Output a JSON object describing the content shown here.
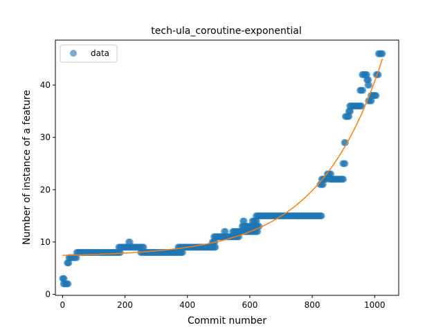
{
  "chart_data": {
    "type": "scatter",
    "title": "tech-ula_coroutine-exponential",
    "xlabel": "Commit number",
    "ylabel": "Number of instance of a feature",
    "xlim": [
      -23,
      1077
    ],
    "ylim": [
      -0.2,
      48.6
    ],
    "xticks": [
      0,
      200,
      400,
      600,
      800,
      1000
    ],
    "yticks": [
      0,
      10,
      20,
      30,
      40
    ],
    "legend": {
      "position": "top-left",
      "entries": [
        "data"
      ]
    },
    "grid": false,
    "colors": {
      "data": "#1f77b4",
      "fit": "#ff7f0e"
    },
    "series": [
      {
        "name": "data",
        "kind": "points",
        "segments": [
          {
            "x": [
              0,
              5
            ],
            "y": 3
          },
          {
            "x": [
              3,
              18
            ],
            "y": 2
          },
          {
            "x": [
              15,
              20
            ],
            "y": 6
          },
          {
            "x": [
              20,
              45
            ],
            "y": 7
          },
          {
            "x": [
              45,
              185
            ],
            "y": 8
          },
          {
            "x": [
              180,
              260
            ],
            "y": 9
          },
          {
            "x": [
              212,
              216
            ],
            "y": 10
          },
          {
            "x": [
              250,
              385
            ],
            "y": 8
          },
          {
            "x": [
              370,
              490
            ],
            "y": 9
          },
          {
            "x": [
              480,
              488
            ],
            "y": 10
          },
          {
            "x": [
              485,
              565
            ],
            "y": 11
          },
          {
            "x": [
              518,
              522
            ],
            "y": 12
          },
          {
            "x": [
              545,
              625
            ],
            "y": 12
          },
          {
            "x": [
              578,
              582
            ],
            "y": 14
          },
          {
            "x": [
              575,
              630
            ],
            "y": 13
          },
          {
            "x": [
              608,
              622
            ],
            "y": 14
          },
          {
            "x": [
              620,
              830
            ],
            "y": 15
          },
          {
            "x": [
              825,
              835
            ],
            "y": 21
          },
          {
            "x": [
              830,
              845
            ],
            "y": 22
          },
          {
            "x": [
              848,
              860
            ],
            "y": 23
          },
          {
            "x": [
              855,
              900
            ],
            "y": 22
          },
          {
            "x": [
              898,
              905
            ],
            "y": 25
          },
          {
            "x": [
              903,
              906
            ],
            "y": 29
          },
          {
            "x": [
              906,
              918
            ],
            "y": 34
          },
          {
            "x": [
              917,
              922
            ],
            "y": 35
          },
          {
            "x": [
              920,
              958
            ],
            "y": 36
          },
          {
            "x": [
              953,
              962
            ],
            "y": 39
          },
          {
            "x": [
              960,
              975
            ],
            "y": 42
          },
          {
            "x": [
              975,
              980
            ],
            "y": 41
          },
          {
            "x": [
              978,
              982
            ],
            "y": 40
          },
          {
            "x": [
              980,
              990
            ],
            "y": 37
          },
          {
            "x": [
              988,
              1005
            ],
            "y": 38
          },
          {
            "x": [
              1005,
              1012
            ],
            "y": 42
          },
          {
            "x": [
              1012,
              1025
            ],
            "y": 46
          }
        ]
      },
      {
        "name": "",
        "kind": "line",
        "formula": "y = 7.2 + 0.255 * exp(x / 205)",
        "x_range": [
          0,
          1025
        ]
      }
    ]
  }
}
